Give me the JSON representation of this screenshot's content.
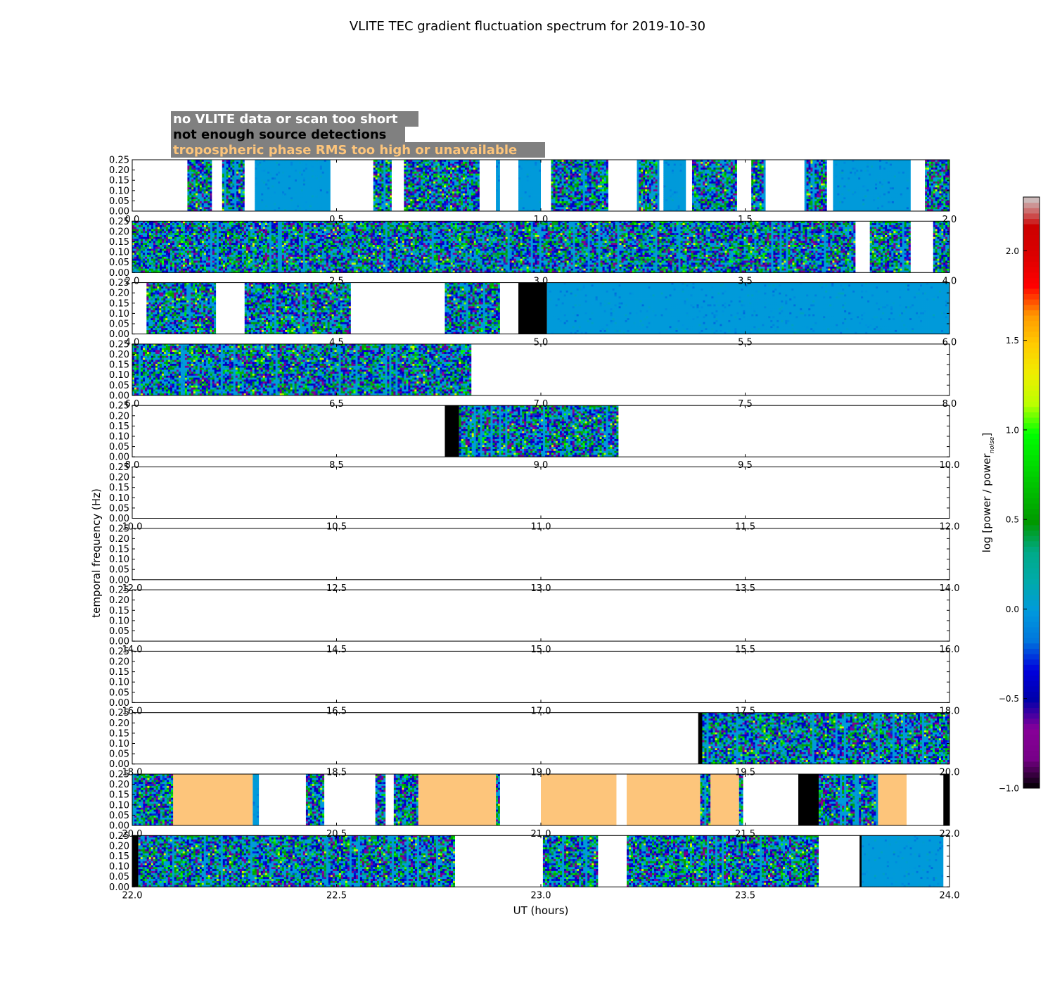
{
  "chart_data": {
    "type": "heatmap",
    "title": "VLITE TEC gradient fluctuation spectrum for 2019-10-30",
    "xlabel": "UT (hours)",
    "ylabel": "temporal frequency (Hz)",
    "ylim": [
      0.0,
      0.25
    ],
    "y_ticks": [
      "0.00",
      "0.05",
      "0.10",
      "0.15",
      "0.20",
      "0.25"
    ],
    "colorbar": {
      "label": "log [power / power",
      "label_subscript": "noise",
      "label_close": "]",
      "range": [
        -1.0,
        2.3
      ],
      "ticks": [
        "−1.0",
        "−0.5",
        "0.0",
        "0.5",
        "1.0",
        "1.5",
        "2.0"
      ],
      "tick_values": [
        -1.0,
        -0.5,
        0.0,
        0.5,
        1.0,
        1.5,
        2.0
      ],
      "colormap": "nipy_spectral"
    },
    "legend": {
      "placement": "top-left",
      "background": "#808080",
      "items": [
        {
          "label": "no VLITE data or scan too short",
          "color": "#ffffff"
        },
        {
          "label": "not enough source detections",
          "color": "#000000"
        },
        {
          "label": "tropospheric phase RMS too high or unavailable",
          "color": "#fdc57b"
        }
      ]
    },
    "status_colors": {
      "white": "#ffffff",
      "black": "#000000",
      "orange": "#fdc57b",
      "blue": "#0099dd"
    },
    "rows": [
      {
        "x_range": [
          0.0,
          2.0
        ],
        "x_ticks": [
          "0.0",
          "0.5",
          "1.0",
          "1.5",
          "2.0"
        ],
        "segments": [
          [
            0.0,
            0.135,
            "white"
          ],
          [
            0.135,
            0.195,
            "data"
          ],
          [
            0.195,
            0.22,
            "white"
          ],
          [
            0.22,
            0.275,
            "data"
          ],
          [
            0.275,
            0.3,
            "white"
          ],
          [
            0.3,
            0.485,
            "data"
          ],
          [
            0.485,
            0.59,
            "white"
          ],
          [
            0.59,
            0.635,
            "data"
          ],
          [
            0.635,
            0.665,
            "white"
          ],
          [
            0.665,
            0.85,
            "data"
          ],
          [
            0.85,
            0.89,
            "white"
          ],
          [
            0.89,
            0.9,
            "data"
          ],
          [
            0.9,
            0.945,
            "white"
          ],
          [
            0.945,
            1.0,
            "data"
          ],
          [
            1.0,
            1.025,
            "white"
          ],
          [
            1.025,
            1.165,
            "data"
          ],
          [
            1.165,
            1.235,
            "white"
          ],
          [
            1.235,
            1.29,
            "data"
          ],
          [
            1.29,
            1.3,
            "white"
          ],
          [
            1.3,
            1.355,
            "data"
          ],
          [
            1.355,
            1.37,
            "white"
          ],
          [
            1.37,
            1.48,
            "data"
          ],
          [
            1.48,
            1.515,
            "white"
          ],
          [
            1.515,
            1.55,
            "data"
          ],
          [
            1.55,
            1.645,
            "white"
          ],
          [
            1.645,
            1.7,
            "data"
          ],
          [
            1.7,
            1.715,
            "white"
          ],
          [
            1.715,
            1.905,
            "data"
          ],
          [
            1.905,
            1.94,
            "white"
          ],
          [
            1.94,
            2.0,
            "data"
          ]
        ]
      },
      {
        "x_range": [
          2.0,
          4.0
        ],
        "x_ticks": [
          "2.0",
          "2.5",
          "3.0",
          "3.5",
          "4.0"
        ],
        "segments": [
          [
            2.0,
            3.77,
            "data"
          ],
          [
            3.77,
            3.805,
            "white"
          ],
          [
            3.805,
            3.905,
            "data"
          ],
          [
            3.905,
            3.96,
            "white"
          ],
          [
            3.96,
            4.0,
            "data"
          ]
        ]
      },
      {
        "x_range": [
          4.0,
          6.0
        ],
        "x_ticks": [
          "4.0",
          "4.5",
          "5.0",
          "5.5",
          "6.0"
        ],
        "segments": [
          [
            4.0,
            4.035,
            "white"
          ],
          [
            4.035,
            4.205,
            "data"
          ],
          [
            4.205,
            4.275,
            "white"
          ],
          [
            4.275,
            4.535,
            "data"
          ],
          [
            4.535,
            4.765,
            "white"
          ],
          [
            4.765,
            4.9,
            "data"
          ],
          [
            4.9,
            4.945,
            "white"
          ],
          [
            4.945,
            5.015,
            "black"
          ],
          [
            5.015,
            6.0,
            "data"
          ]
        ]
      },
      {
        "x_range": [
          6.0,
          8.0
        ],
        "x_ticks": [
          "6.0",
          "6.5",
          "7.0",
          "7.5",
          "8.0"
        ],
        "segments": [
          [
            6.0,
            6.83,
            "data"
          ],
          [
            6.83,
            8.0,
            "white"
          ]
        ]
      },
      {
        "x_range": [
          8.0,
          10.0
        ],
        "x_ticks": [
          "8.0",
          "8.5",
          "9.0",
          "9.5",
          "10.0"
        ],
        "segments": [
          [
            8.0,
            8.765,
            "white"
          ],
          [
            8.765,
            8.8,
            "black"
          ],
          [
            8.8,
            9.19,
            "data"
          ],
          [
            9.19,
            10.0,
            "white"
          ]
        ]
      },
      {
        "x_range": [
          10.0,
          12.0
        ],
        "x_ticks": [
          "10.0",
          "10.5",
          "11.0",
          "11.5",
          "12.0"
        ],
        "segments": [
          [
            10.0,
            12.0,
            "white"
          ]
        ]
      },
      {
        "x_range": [
          12.0,
          14.0
        ],
        "x_ticks": [
          "12.0",
          "12.5",
          "13.0",
          "13.5",
          "14.0"
        ],
        "segments": [
          [
            12.0,
            14.0,
            "white"
          ]
        ]
      },
      {
        "x_range": [
          14.0,
          16.0
        ],
        "x_ticks": [
          "14.0",
          "14.5",
          "15.0",
          "15.5",
          "16.0"
        ],
        "segments": [
          [
            14.0,
            16.0,
            "white"
          ]
        ]
      },
      {
        "x_range": [
          16.0,
          18.0
        ],
        "x_ticks": [
          "16.0",
          "16.5",
          "17.0",
          "17.5",
          "18.0"
        ],
        "segments": [
          [
            16.0,
            18.0,
            "white"
          ]
        ]
      },
      {
        "x_range": [
          18.0,
          20.0
        ],
        "x_ticks": [
          "18.0",
          "18.5",
          "19.0",
          "19.5",
          "20.0"
        ],
        "segments": [
          [
            18.0,
            19.385,
            "white"
          ],
          [
            19.385,
            19.395,
            "black"
          ],
          [
            19.395,
            20.0,
            "data"
          ]
        ]
      },
      {
        "x_range": [
          20.0,
          22.0
        ],
        "x_ticks": [
          "20.0",
          "20.5",
          "21.0",
          "21.5",
          "22.0"
        ],
        "segments": [
          [
            20.0,
            20.1,
            "data"
          ],
          [
            20.1,
            20.295,
            "orange"
          ],
          [
            20.295,
            20.31,
            "data"
          ],
          [
            20.31,
            20.425,
            "white"
          ],
          [
            20.425,
            20.47,
            "data"
          ],
          [
            20.47,
            20.595,
            "white"
          ],
          [
            20.595,
            20.62,
            "data"
          ],
          [
            20.62,
            20.64,
            "white"
          ],
          [
            20.64,
            20.7,
            "data"
          ],
          [
            20.7,
            20.89,
            "orange"
          ],
          [
            20.89,
            20.9,
            "data"
          ],
          [
            20.9,
            21.0,
            "white"
          ],
          [
            21.0,
            21.185,
            "orange"
          ],
          [
            21.185,
            21.21,
            "white"
          ],
          [
            21.21,
            21.39,
            "orange"
          ],
          [
            21.39,
            21.415,
            "data"
          ],
          [
            21.415,
            21.485,
            "orange"
          ],
          [
            21.485,
            21.495,
            "data"
          ],
          [
            21.495,
            21.63,
            "white"
          ],
          [
            21.63,
            21.68,
            "black"
          ],
          [
            21.68,
            21.825,
            "data"
          ],
          [
            21.825,
            21.895,
            "orange"
          ],
          [
            21.895,
            21.985,
            "white"
          ],
          [
            21.985,
            22.0,
            "black"
          ]
        ]
      },
      {
        "x_range": [
          22.0,
          24.0
        ],
        "x_ticks": [
          "22.0",
          "22.5",
          "23.0",
          "23.5",
          "24.0"
        ],
        "segments": [
          [
            22.0,
            22.015,
            "black"
          ],
          [
            22.015,
            22.79,
            "data"
          ],
          [
            22.79,
            23.005,
            "white"
          ],
          [
            23.005,
            23.14,
            "data"
          ],
          [
            23.14,
            23.21,
            "white"
          ],
          [
            23.21,
            23.68,
            "data"
          ],
          [
            23.68,
            23.78,
            "white"
          ],
          [
            23.78,
            23.785,
            "black"
          ],
          [
            23.785,
            23.985,
            "data"
          ],
          [
            23.985,
            24.0,
            "white"
          ]
        ]
      }
    ]
  }
}
